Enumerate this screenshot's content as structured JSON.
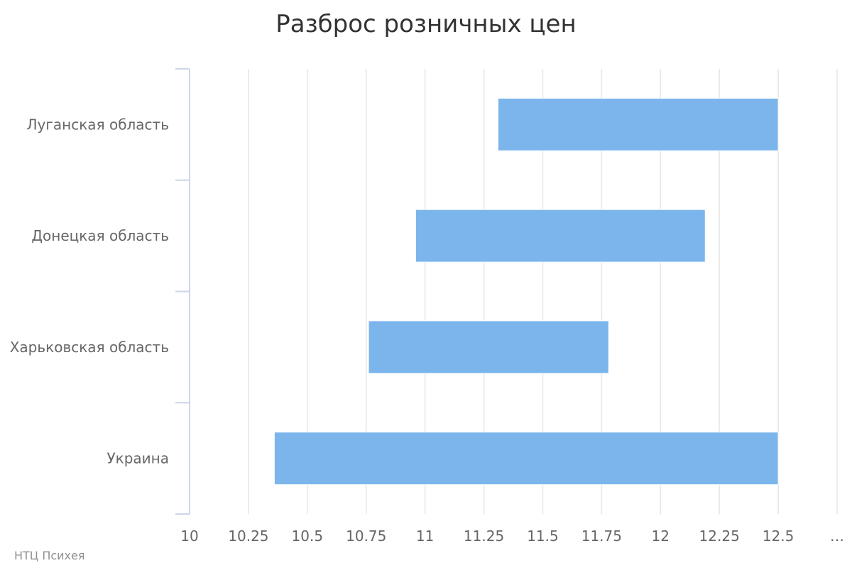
{
  "chart_data": {
    "type": "bar",
    "orientation": "horizontal",
    "variant": "range",
    "title": "Разброс розничных цен",
    "categories": [
      "Луганская область",
      "Донецкая область",
      "Харьковская область",
      "Украина"
    ],
    "series": [
      {
        "ranges": [
          [
            11.31,
            12.5
          ],
          [
            10.96,
            12.19
          ],
          [
            10.76,
            11.78
          ],
          [
            10.36,
            12.5
          ]
        ]
      }
    ],
    "xlim": [
      10,
      12.75
    ],
    "x_ticks": [
      "10",
      "10.25",
      "10.5",
      "10.75",
      "11",
      "11.25",
      "11.5",
      "11.75",
      "12",
      "12.25",
      "12.5",
      "…"
    ],
    "grid": true,
    "legend": "none",
    "colors": {
      "bar": "#7cb5ec",
      "grid": "#e6e6e6",
      "axis": "#ccd6eb",
      "title": "#333333",
      "label": "#666666",
      "credits": "#909090"
    }
  },
  "credits": "НТЦ Психея"
}
